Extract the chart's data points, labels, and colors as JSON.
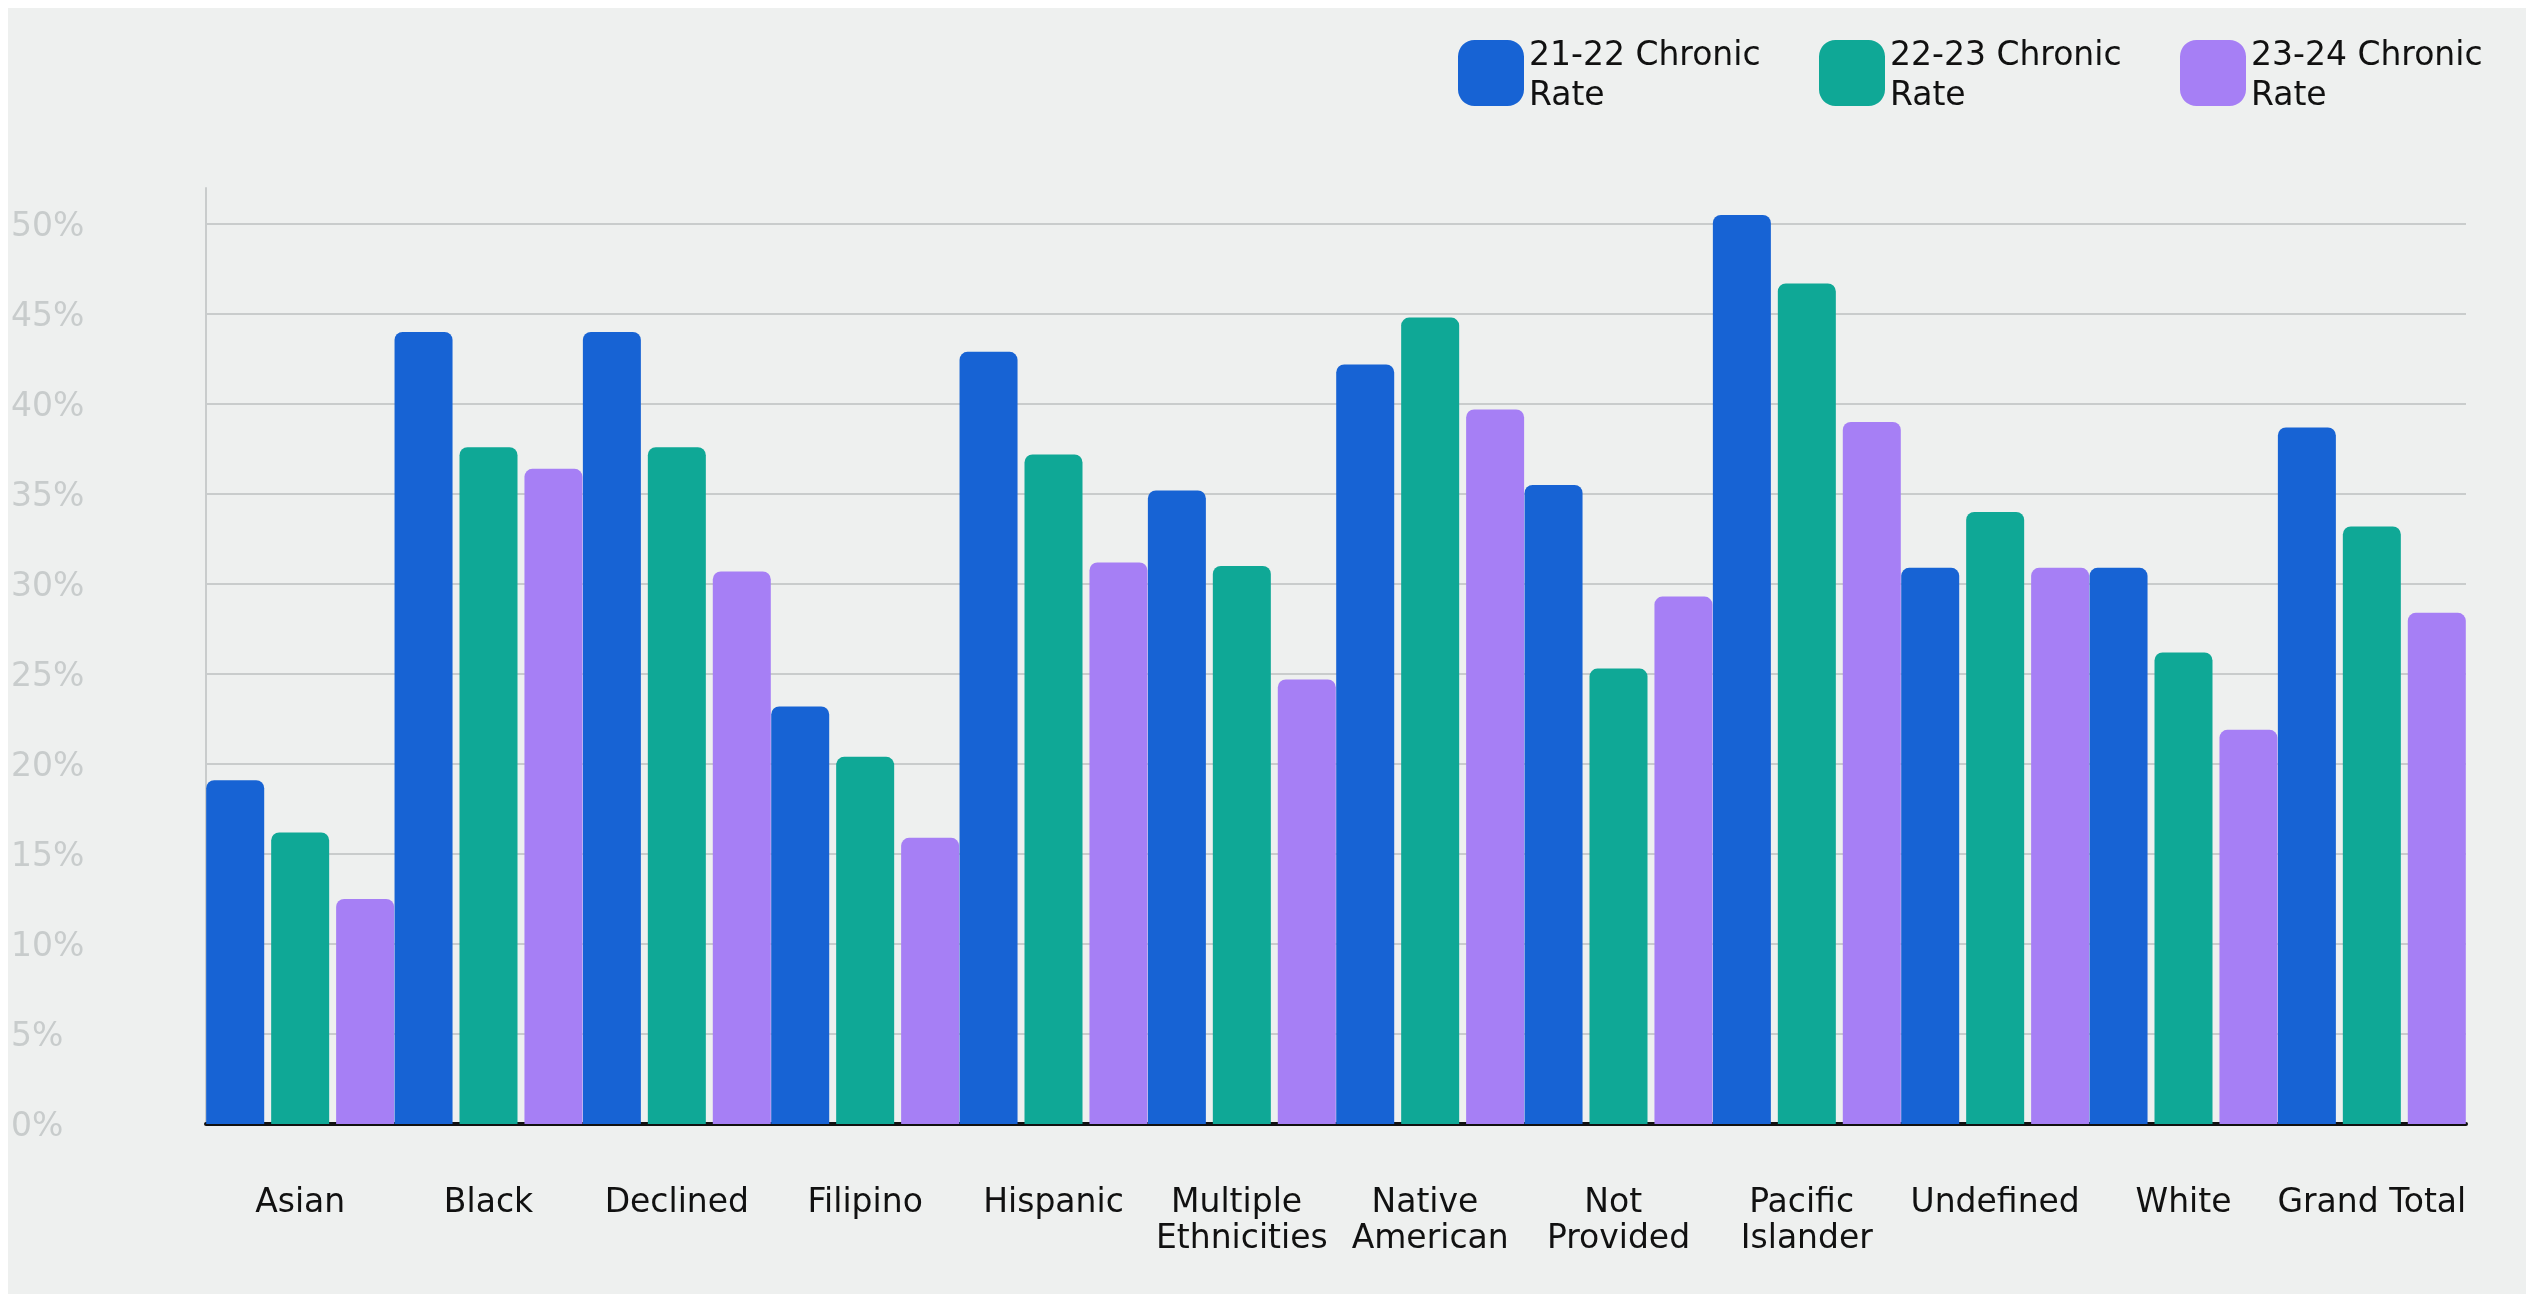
{
  "chart_data": {
    "type": "bar",
    "categories": [
      "Asian",
      "Black",
      "Declined",
      "Filipino",
      "Hispanic",
      "Multiple Ethnicities",
      "Native American",
      "Not Provided",
      "Pacific Islander",
      "Undefined",
      "White",
      "Grand Total"
    ],
    "series": [
      {
        "name": "21-22 Chronic Rate",
        "color": "#1763d4",
        "values": [
          19.1,
          44.0,
          44.0,
          23.2,
          42.9,
          35.2,
          42.2,
          35.5,
          50.5,
          30.9,
          30.9,
          38.7
        ]
      },
      {
        "name": "22-23 Chronic Rate",
        "color": "#0fa896",
        "values": [
          16.2,
          37.6,
          37.6,
          20.4,
          37.2,
          31.0,
          44.8,
          25.3,
          46.7,
          34.0,
          26.2,
          33.2
        ]
      },
      {
        "name": "23-24 Chronic Rate",
        "color": "#a67ff5",
        "values": [
          12.5,
          36.4,
          30.7,
          15.9,
          31.2,
          24.7,
          39.7,
          29.3,
          39.0,
          30.9,
          21.9,
          28.4
        ]
      }
    ],
    "ylim": [
      0,
      52
    ],
    "yticks": [
      {
        "value": 0,
        "label": "0%"
      },
      {
        "value": 5,
        "label": "5%"
      },
      {
        "value": 10,
        "label": "10%"
      },
      {
        "value": 15,
        "label": "15%"
      },
      {
        "value": 20,
        "label": "20%"
      },
      {
        "value": 25,
        "label": "25%"
      },
      {
        "value": 30,
        "label": "30%"
      },
      {
        "value": 35,
        "label": "35%"
      },
      {
        "value": 40,
        "label": "40%"
      },
      {
        "value": 45,
        "label": "45%"
      },
      {
        "value": 50,
        "label": "50%"
      }
    ],
    "grid": "y",
    "legend": "top right"
  }
}
